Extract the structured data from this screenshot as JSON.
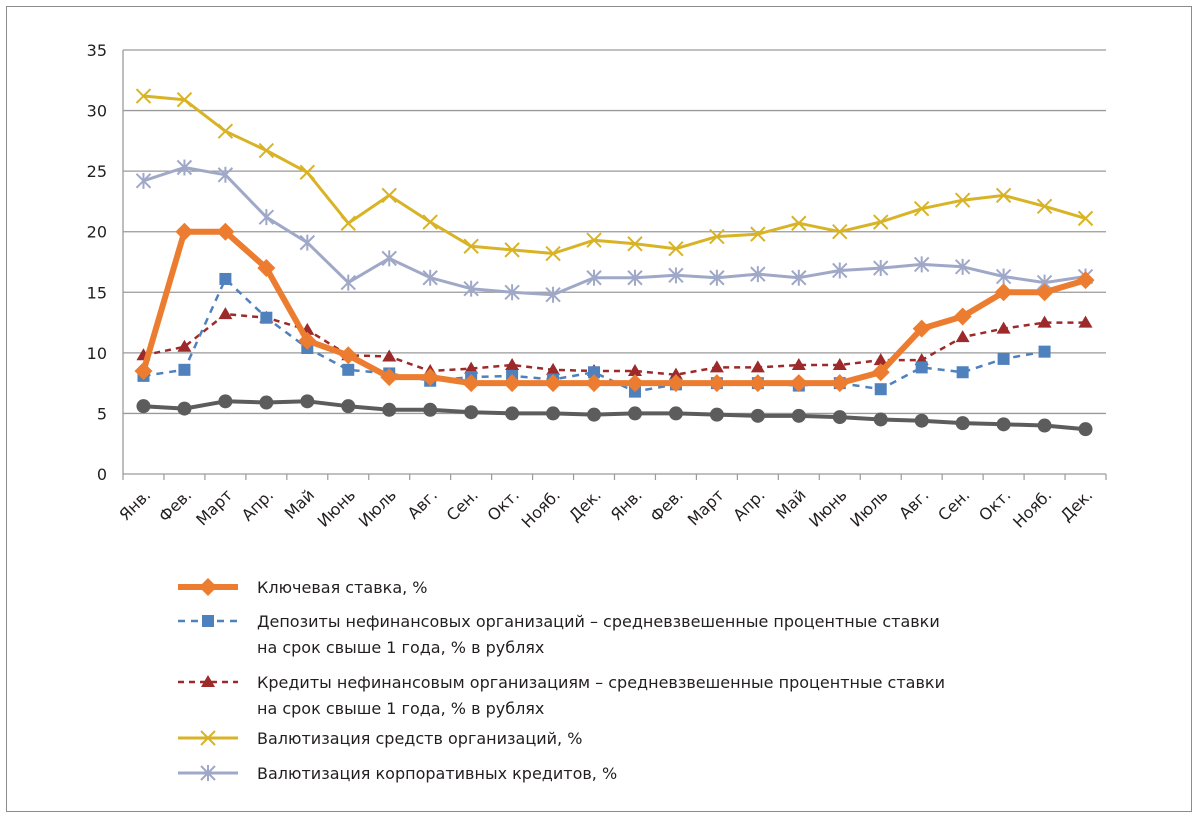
{
  "chart_data": {
    "type": "line",
    "ylim": [
      0,
      35
    ],
    "yticks": [
      "0",
      "5",
      "10",
      "15",
      "20",
      "25",
      "30",
      "35"
    ],
    "grid": true,
    "legend_position": "bottom",
    "categories": [
      "Янв.",
      "Фев.",
      "Март",
      "Апр.",
      "Май",
      "Июнь",
      "Июль",
      "Авг.",
      "Сен.",
      "Окт.",
      "Нояб.",
      "Дек.",
      "Янв.",
      "Фев.",
      "Март",
      "Апр.",
      "Май",
      "Июнь",
      "Июль",
      "Авг.",
      "Сен.",
      "Окт.",
      "Нояб.",
      "Дек."
    ],
    "series": [
      {
        "key": "wrong",
        "name": "",
        "color": "#5c5c5c",
        "marker": "circle",
        "dash": "",
        "values": [
          5.6,
          5.4,
          6.0,
          5.9,
          6.0,
          5.6,
          5.3,
          5.3,
          5.1,
          5.0,
          5.0,
          4.9,
          5.0,
          5.0,
          4.9,
          4.8,
          4.8,
          4.7,
          4.5,
          4.4,
          4.2,
          4.1,
          4.0,
          3.7
        ]
      },
      {
        "key": "fx_orgs",
        "name": "Валютизация средств организаций, %",
        "color": "#d9b326",
        "marker": "x",
        "dash": "",
        "values": [
          31.2,
          30.9,
          28.3,
          26.7,
          24.9,
          20.7,
          23.0,
          20.8,
          18.8,
          18.5,
          18.2,
          19.3,
          19.0,
          18.6,
          19.6,
          19.8,
          20.7,
          20.0,
          20.8,
          21.9,
          22.6,
          23.0,
          22.1,
          21.1
        ]
      },
      {
        "key": "fx_credits",
        "name": "Валютизация корпоративных кредитов, %",
        "color": "#a0a8c8",
        "marker": "asterisk",
        "dash": "",
        "values": [
          24.2,
          25.3,
          24.7,
          21.2,
          19.1,
          15.8,
          17.8,
          16.2,
          15.3,
          15.0,
          14.8,
          16.2,
          16.2,
          16.4,
          16.2,
          16.5,
          16.2,
          16.8,
          17.0,
          17.3,
          17.1,
          16.3,
          15.8,
          16.3
        ]
      },
      {
        "key": "credits",
        "name": "Кредиты нефинансовым организациям – средневзвешенные процентные ставки|на срок свыше 1 года, % в рублях",
        "color": "#9c2a2a",
        "marker": "triangle",
        "dash": "6,5",
        "values": [
          9.8,
          10.5,
          13.2,
          12.9,
          11.9,
          9.8,
          9.7,
          8.5,
          8.7,
          9.0,
          8.6,
          8.5,
          8.5,
          8.2,
          8.8,
          8.8,
          9.0,
          9.0,
          9.4,
          9.4,
          11.3,
          12.0,
          12.5,
          12.5
        ]
      },
      {
        "key": "deposits",
        "name": "Депозиты нефинансовых организаций – средневзвешенные процентные ставки|на срок свыше 1 года, % в рублях",
        "color": "#4f81bd",
        "marker": "square",
        "dash": "7,6",
        "values": [
          8.1,
          8.6,
          16.1,
          12.9,
          10.4,
          8.6,
          8.3,
          7.7,
          8.0,
          8.1,
          7.8,
          8.4,
          6.8,
          7.4,
          7.5,
          7.5,
          7.3,
          7.5,
          7.0,
          8.8,
          8.4,
          9.5,
          10.1,
          null
        ]
      },
      {
        "key": "key_rate",
        "name": "Ключевая ставка, %",
        "color": "#ec7d30",
        "marker": "diamond",
        "dash": "",
        "values": [
          8.5,
          20.0,
          20.0,
          17.0,
          11.0,
          9.8,
          8.0,
          8.0,
          7.5,
          7.5,
          7.5,
          7.5,
          7.5,
          7.5,
          7.5,
          7.5,
          7.5,
          7.5,
          8.4,
          12.0,
          13.0,
          15.0,
          15.0,
          16.0
        ]
      }
    ],
    "legend_order": [
      "key_rate",
      "deposits",
      "credits",
      "fx_orgs",
      "fx_credits"
    ]
  }
}
